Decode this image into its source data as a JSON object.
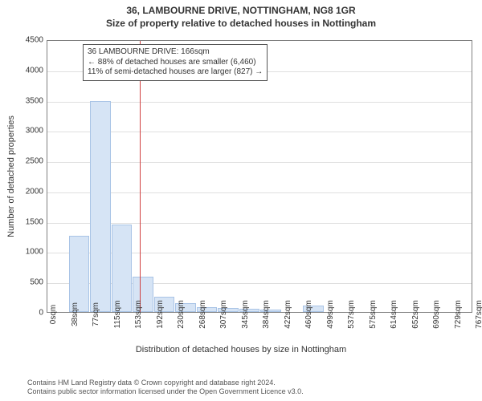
{
  "title": "36, LAMBOURNE DRIVE, NOTTINGHAM, NG8 1GR",
  "subtitle": "Size of property relative to detached houses in Nottingham",
  "chart": {
    "type": "histogram",
    "ylabel": "Number of detached properties",
    "xlabel": "Distribution of detached houses by size in Nottingham",
    "ylim": [
      0,
      4500
    ],
    "ytick_step": 500,
    "yticks": [
      0,
      500,
      1000,
      1500,
      2000,
      2500,
      3000,
      3500,
      4000,
      4500
    ],
    "x_categories": [
      "0sqm",
      "38sqm",
      "77sqm",
      "115sqm",
      "153sqm",
      "192sqm",
      "230sqm",
      "268sqm",
      "307sqm",
      "345sqm",
      "384sqm",
      "422sqm",
      "460sqm",
      "499sqm",
      "537sqm",
      "575sqm",
      "614sqm",
      "652sqm",
      "690sqm",
      "729sqm",
      "767sqm"
    ],
    "values": [
      0,
      1260,
      3480,
      1440,
      580,
      250,
      150,
      80,
      70,
      50,
      40,
      0,
      110,
      0,
      0,
      0,
      0,
      0,
      0,
      0
    ],
    "bar_fill": "#d6e4f5",
    "bar_border": "#a9c4e6",
    "background_color": "#ffffff",
    "grid_color": "#c0c0c0",
    "axis_color": "#808080",
    "reference_line": {
      "position_index": 4.33,
      "color": "#d04040"
    },
    "annotation": {
      "lines": [
        "36 LAMBOURNE DRIVE: 166sqm",
        "← 88% of detached houses are smaller (6,460)",
        "11% of semi-detached houses are larger (827) →"
      ],
      "border_color": "#555555",
      "bg_color": "#ffffff",
      "font_size": 10
    },
    "title_fontsize": 12,
    "label_fontsize": 11,
    "tick_fontsize": 10
  },
  "credits": {
    "line1": "Contains HM Land Registry data © Crown copyright and database right 2024.",
    "line2": "Contains public sector information licensed under the Open Government Licence v3.0."
  }
}
